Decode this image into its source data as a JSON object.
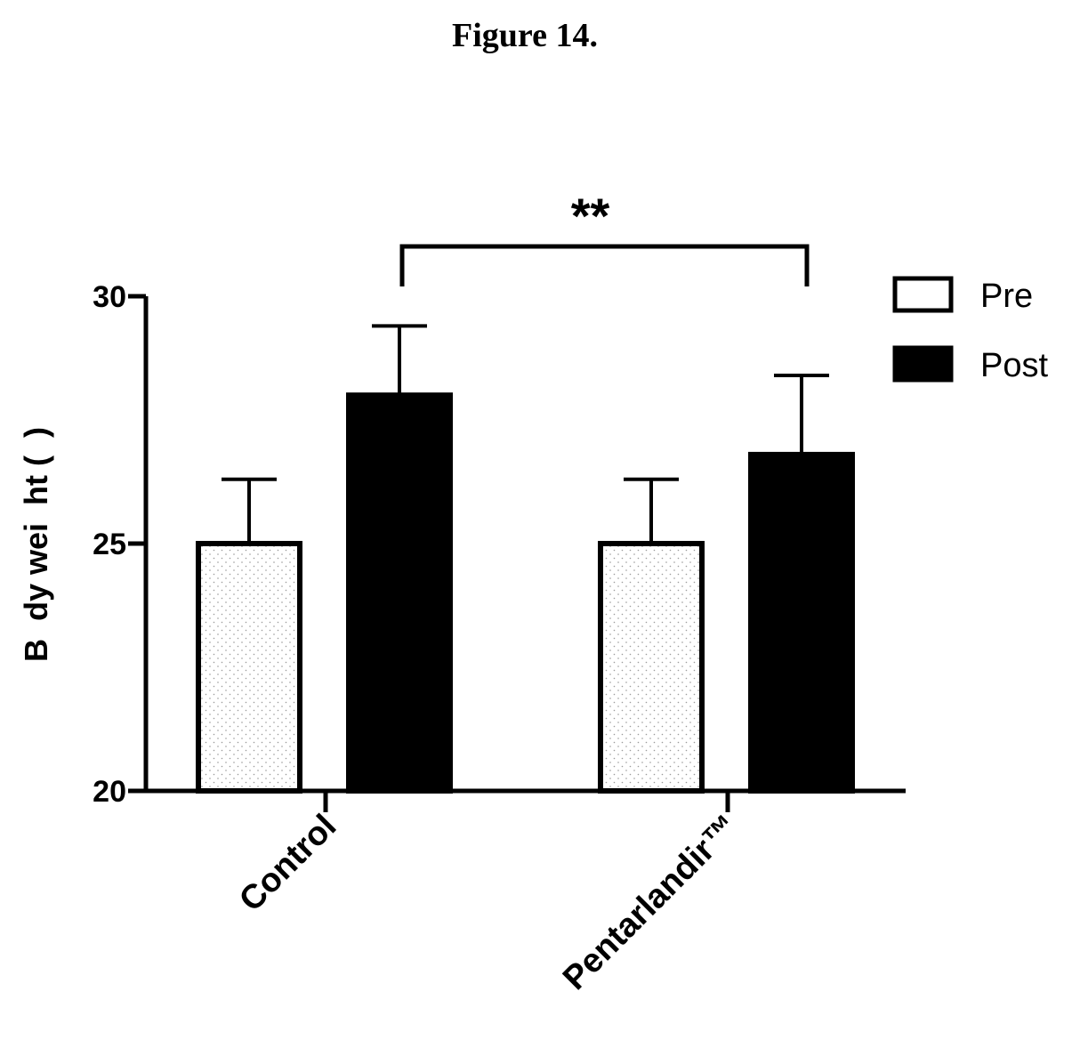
{
  "figure_title": "Figure 14.",
  "chart_data": {
    "type": "bar",
    "categories": [
      "Control",
      "Pentarlandir™"
    ],
    "series": [
      {
        "name": "Pre",
        "values": [
          25.0,
          25.0
        ],
        "errors": [
          1.3,
          1.3
        ],
        "color": "#ffffff",
        "pattern": "dotted"
      },
      {
        "name": "Post",
        "values": [
          28.0,
          26.8
        ],
        "errors": [
          1.4,
          1.6
        ],
        "color": "#000000"
      }
    ],
    "ylabel": "B  dy wei  ht (  )",
    "ylim": [
      20,
      30
    ],
    "yticks": [
      20,
      25,
      30
    ],
    "grid": false,
    "legend_position": "top-right",
    "annotation": {
      "text": "**",
      "between": [
        "Control",
        "Pentarlandir™"
      ]
    }
  }
}
